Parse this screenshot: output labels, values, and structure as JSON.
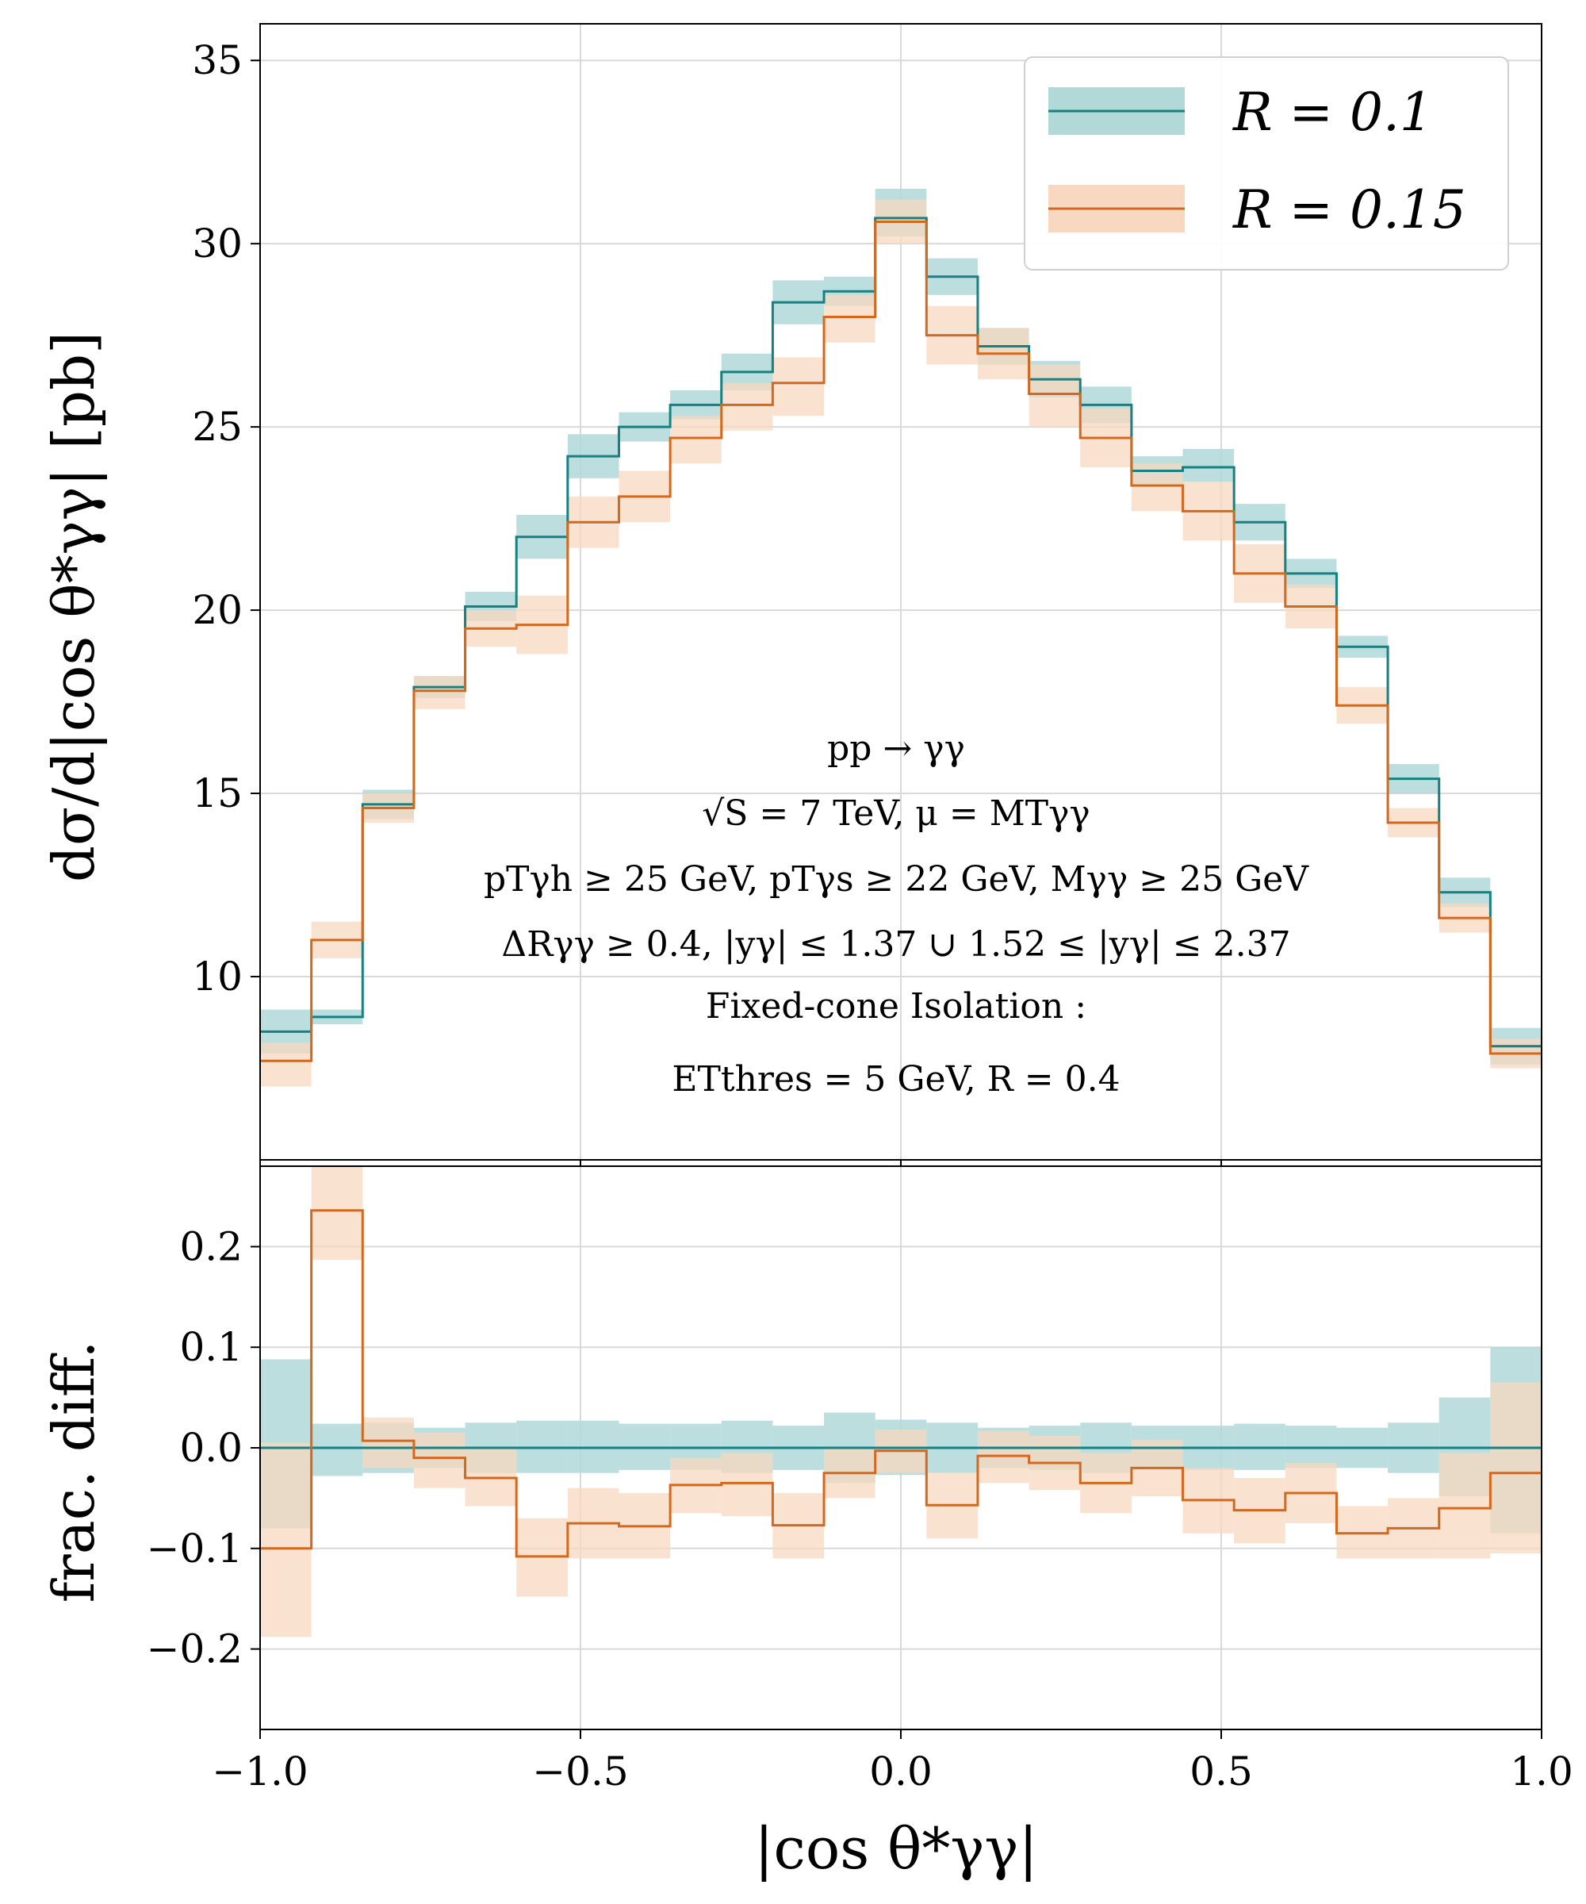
{
  "chart_data": [
    {
      "type": "line",
      "panel": "main",
      "ylabel": "dσ/d|cos θ*γγ| [pb]",
      "ylim": [
        5,
        36
      ],
      "yticks": [
        "10",
        "15",
        "20",
        "25",
        "30",
        "35"
      ],
      "xlim": [
        -1.0,
        1.0
      ],
      "grid": true,
      "legend": "top-right",
      "bin_edges": [
        -1.0,
        -0.92,
        -0.84,
        -0.76,
        -0.68,
        -0.6,
        -0.52,
        -0.44,
        -0.36,
        -0.28,
        -0.2,
        -0.12,
        -0.04,
        0.04,
        0.12,
        0.2,
        0.28,
        0.36,
        0.44,
        0.52,
        0.6,
        0.68,
        0.76,
        0.84,
        0.92,
        1.0
      ],
      "series": [
        {
          "name": "R = 0.1",
          "color": "#178080",
          "band_color": "#b2d8d8",
          "values": [
            8.5,
            8.9,
            14.7,
            17.9,
            20.1,
            22.0,
            24.2,
            25.0,
            25.6,
            26.5,
            28.4,
            28.7,
            30.7,
            29.1,
            27.2,
            26.3,
            25.6,
            23.8,
            23.9,
            22.4,
            21.0,
            19.0,
            15.4,
            12.3,
            8.1
          ],
          "band_low": [
            7.9,
            8.7,
            14.3,
            17.6,
            19.7,
            21.4,
            23.6,
            24.6,
            25.2,
            26.0,
            27.8,
            28.3,
            30.2,
            28.6,
            26.7,
            25.8,
            25.1,
            23.4,
            23.5,
            21.9,
            20.6,
            18.7,
            15.0,
            11.9,
            7.6
          ],
          "band_high": [
            9.1,
            9.1,
            15.1,
            18.2,
            20.5,
            22.6,
            24.8,
            25.4,
            26.0,
            27.0,
            29.0,
            29.1,
            31.5,
            29.6,
            27.7,
            26.8,
            26.1,
            24.2,
            24.4,
            22.9,
            21.4,
            19.3,
            15.8,
            12.7,
            8.6
          ]
        },
        {
          "name": "R = 0.15",
          "color": "#d2691e",
          "band_color": "#f8d8c0",
          "values": [
            7.7,
            11.0,
            14.6,
            17.8,
            19.5,
            19.6,
            22.4,
            23.1,
            24.7,
            25.6,
            26.2,
            28.0,
            30.6,
            27.5,
            27.0,
            25.9,
            24.7,
            23.4,
            22.7,
            21.0,
            20.1,
            17.4,
            14.2,
            11.6,
            7.9
          ],
          "band_low": [
            7.0,
            10.5,
            14.2,
            17.3,
            19.0,
            18.8,
            21.7,
            22.4,
            24.0,
            24.9,
            25.3,
            27.3,
            30.0,
            26.7,
            26.3,
            25.0,
            23.9,
            22.7,
            21.9,
            20.2,
            19.5,
            16.9,
            13.8,
            11.2,
            7.5
          ],
          "band_high": [
            8.2,
            11.5,
            15.0,
            18.2,
            20.0,
            20.4,
            23.1,
            23.8,
            25.3,
            26.2,
            26.9,
            28.6,
            31.2,
            28.3,
            27.7,
            26.7,
            25.5,
            24.0,
            23.5,
            21.8,
            20.7,
            17.9,
            14.6,
            12.0,
            8.3
          ]
        }
      ],
      "annotations": [
        "pp → γγ",
        "√S = 7 TeV, μ = MTγγ",
        "pTγh ≥ 25 GeV,  pTγs ≥ 22 GeV,  Mγγ ≥ 25 GeV",
        "ΔRγγ ≥ 0.4,  |yγ| ≤ 1.37 ∪ 1.52 ≤ |yγ| ≤ 2.37",
        "Fixed-cone Isolation :",
        "ETthres = 5 GeV,  R = 0.4"
      ]
    },
    {
      "type": "line",
      "panel": "ratio",
      "ylabel": "frac. diff.",
      "xlabel": "|cos θ*γγ|",
      "ylim": [
        -0.28,
        0.28
      ],
      "yticks": [
        "−0.2",
        "−0.1",
        "0.0",
        "0.1",
        "0.2"
      ],
      "xlim": [
        -1.0,
        1.0
      ],
      "xticks": [
        "−1.0",
        "−0.5",
        "0.0",
        "0.5",
        "1.0"
      ],
      "grid": true,
      "bin_edges": [
        -1.0,
        -0.92,
        -0.84,
        -0.76,
        -0.68,
        -0.6,
        -0.52,
        -0.44,
        -0.36,
        -0.28,
        -0.2,
        -0.12,
        -0.04,
        0.04,
        0.12,
        0.2,
        0.28,
        0.36,
        0.44,
        0.52,
        0.6,
        0.68,
        0.76,
        0.84,
        0.92,
        1.0
      ],
      "series": [
        {
          "name": "R = 0.1",
          "color": "#178080",
          "band_color": "#b2d8d8",
          "values": [
            0,
            0,
            0,
            0,
            0,
            0,
            0,
            0,
            0,
            0,
            0,
            0,
            0,
            0,
            0,
            0,
            0,
            0,
            0,
            0,
            0,
            0,
            0,
            0,
            0
          ],
          "band_low": [
            -0.08,
            -0.028,
            -0.025,
            -0.02,
            -0.025,
            -0.025,
            -0.025,
            -0.022,
            -0.022,
            -0.025,
            -0.022,
            -0.035,
            -0.027,
            -0.025,
            -0.02,
            -0.022,
            -0.025,
            -0.022,
            -0.022,
            -0.022,
            -0.02,
            -0.02,
            -0.025,
            -0.048,
            -0.085
          ],
          "band_high": [
            0.088,
            0.024,
            0.025,
            0.02,
            0.025,
            0.027,
            0.027,
            0.024,
            0.024,
            0.027,
            0.022,
            0.035,
            0.028,
            0.025,
            0.02,
            0.022,
            0.025,
            0.022,
            0.022,
            0.024,
            0.022,
            0.02,
            0.025,
            0.05,
            0.1
          ]
        },
        {
          "name": "R = 0.15",
          "color": "#d2691e",
          "band_color": "#f8d8c0",
          "values": [
            -0.1,
            0.236,
            0.007,
            -0.01,
            -0.03,
            -0.108,
            -0.075,
            -0.078,
            -0.037,
            -0.035,
            -0.077,
            -0.025,
            -0.003,
            -0.057,
            -0.008,
            -0.015,
            -0.035,
            -0.02,
            -0.052,
            -0.062,
            -0.045,
            -0.085,
            -0.08,
            -0.06,
            -0.025
          ],
          "band_low": [
            -0.188,
            0.187,
            -0.02,
            -0.04,
            -0.058,
            -0.148,
            -0.11,
            -0.11,
            -0.065,
            -0.068,
            -0.11,
            -0.05,
            -0.025,
            -0.09,
            -0.035,
            -0.042,
            -0.065,
            -0.048,
            -0.085,
            -0.095,
            -0.075,
            -0.11,
            -0.11,
            -0.11,
            -0.105
          ],
          "band_high": [
            0.005,
            0.28,
            0.03,
            0.015,
            0,
            -0.07,
            -0.04,
            -0.045,
            -0.01,
            -0.005,
            -0.045,
            0,
            0.018,
            -0.025,
            0.017,
            0.012,
            -0.005,
            0.008,
            -0.02,
            -0.03,
            -0.015,
            -0.058,
            -0.05,
            -0.005,
            0.065
          ]
        }
      ]
    }
  ]
}
